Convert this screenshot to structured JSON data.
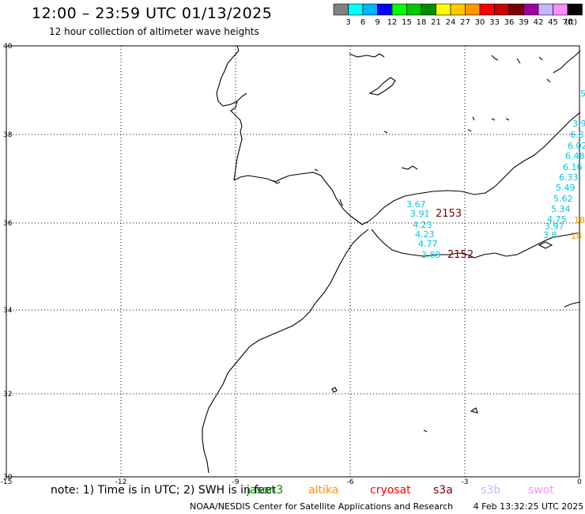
{
  "header": {
    "title": "12:00 – 23:59 UTC 01/13/2025",
    "subtitle": "12 hour collection of altimeter wave heights"
  },
  "legend": {
    "unit": "(ft)",
    "bins": [
      {
        "color": "#808080",
        "label": "3"
      },
      {
        "color": "#00ffff",
        "label": "6"
      },
      {
        "color": "#00b4ff",
        "label": "9"
      },
      {
        "color": "#0000ff",
        "label": "12"
      },
      {
        "color": "#00ff00",
        "label": "15"
      },
      {
        "color": "#00c800",
        "label": "18"
      },
      {
        "color": "#008c00",
        "label": "21"
      },
      {
        "color": "#ffff00",
        "label": "24"
      },
      {
        "color": "#ffc800",
        "label": "27"
      },
      {
        "color": "#ff9600",
        "label": "30"
      },
      {
        "color": "#ff0000",
        "label": "33"
      },
      {
        "color": "#c80000",
        "label": "36"
      },
      {
        "color": "#780000",
        "label": "39"
      },
      {
        "color": "#a000a0",
        "label": "42"
      },
      {
        "color": "#c8b4ff",
        "label": "45"
      },
      {
        "color": "#ff8cff",
        "label": "70"
      },
      {
        "color": "#000000",
        "label": ""
      }
    ]
  },
  "axes": {
    "lon_ticks": [
      "-15",
      "-12",
      "-9",
      "-6",
      "-3",
      "0"
    ],
    "lat_ticks": [
      "40",
      "38",
      "36",
      "34",
      "32",
      "30"
    ]
  },
  "observations": {
    "pass1": [
      "3.67",
      "3.91",
      "4.23",
      "4.23",
      "4.77",
      "3.88"
    ],
    "pass2": [
      "3.9",
      "6.8",
      "6.02",
      "6.48",
      "6.16",
      "6.33",
      "5.49",
      "5.62",
      "5.34",
      "4.75",
      "3.97",
      "3.8"
    ],
    "top_right": "5",
    "orange": [
      "18",
      "18"
    ],
    "time_labels": [
      "2153",
      "2152"
    ]
  },
  "footer": {
    "note": "note: 1) Time is in UTC; 2) SWH is in feet",
    "satellites": [
      {
        "name": "jason3",
        "color": "#008c00"
      },
      {
        "name": "altika",
        "color": "#ff9600"
      },
      {
        "name": "cryosat",
        "color": "#ff0000"
      },
      {
        "name": "s3a",
        "color": "#780000"
      },
      {
        "name": "s3b",
        "color": "#c8b4ff"
      },
      {
        "name": "swot",
        "color": "#ff8cff"
      }
    ],
    "credit": "NOAA/NESDIS Center for Satellite Applications and Research",
    "timestamp": "4 Feb 13:32:25 UTC 2025"
  }
}
